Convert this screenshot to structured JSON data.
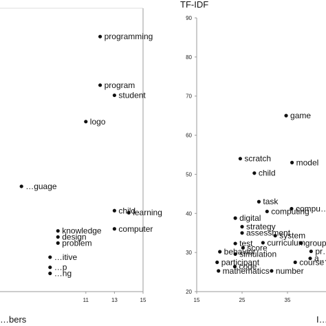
{
  "chart_data": [
    {
      "type": "scatter",
      "title": "",
      "xlabel": "…bers",
      "ylabel": "",
      "xlim": [
        5,
        15
      ],
      "ylim": [
        20,
        90
      ],
      "x_ticks": [
        "11",
        "13",
        "15"
      ],
      "grid": false,
      "points": [
        {
          "label": "programming",
          "x": 12,
          "y": 83
        },
        {
          "label": "program",
          "x": 12,
          "y": 71
        },
        {
          "label": "student",
          "x": 13,
          "y": 68.5
        },
        {
          "label": "logo",
          "x": 11,
          "y": 62
        },
        {
          "label": "…guage",
          "x": 6.5,
          "y": 46
        },
        {
          "label": "child",
          "x": 13,
          "y": 40
        },
        {
          "label": "learning",
          "x": 14,
          "y": 39.5
        },
        {
          "label": "computer",
          "x": 13,
          "y": 35.5
        },
        {
          "label": "knowledge",
          "x": 9.05,
          "y": 35
        },
        {
          "label": "design",
          "x": 9.05,
          "y": 33.5
        },
        {
          "label": "problem",
          "x": 9.05,
          "y": 32
        },
        {
          "label": "…itive",
          "x": 8.5,
          "y": 28.5
        },
        {
          "label": "…p",
          "x": 8.5,
          "y": 26
        },
        {
          "label": "…ng",
          "x": 8.5,
          "y": 24.5
        }
      ]
    },
    {
      "type": "scatter",
      "title": "TF-IDF",
      "xlabel": "I…",
      "ylabel": "",
      "xlim": [
        15,
        45
      ],
      "ylim": [
        20,
        90
      ],
      "x_ticks": [
        "15",
        "25",
        "35"
      ],
      "y_ticks": [
        "20",
        "30",
        "40",
        "50",
        "60",
        "70",
        "80",
        "90"
      ],
      "grid": false,
      "points": [
        {
          "label": "game",
          "x": 34.7,
          "y": 65
        },
        {
          "label": "",
          "x": 44.0,
          "y": 62
        },
        {
          "label": "scratch",
          "x": 24.6,
          "y": 54
        },
        {
          "label": "model",
          "x": 36.0,
          "y": 53
        },
        {
          "label": "child",
          "x": 27.7,
          "y": 50.3
        },
        {
          "label": "task",
          "x": 28.7,
          "y": 43
        },
        {
          "label": "compu…",
          "x": 35.9,
          "y": 41.2
        },
        {
          "label": "computing",
          "x": 30.5,
          "y": 40.5
        },
        {
          "label": "digital",
          "x": 23.5,
          "y": 38.8
        },
        {
          "label": "strategy",
          "x": 25.0,
          "y": 36.6
        },
        {
          "label": "assessment",
          "x": 25.0,
          "y": 35.0
        },
        {
          "label": "system",
          "x": 32.3,
          "y": 34.3
        },
        {
          "label": "test",
          "x": 23.5,
          "y": 32.3
        },
        {
          "label": "score",
          "x": 25.2,
          "y": 31.2
        },
        {
          "label": "curriculum",
          "x": 29.6,
          "y": 32.5
        },
        {
          "label": "group",
          "x": 38.0,
          "y": 32.4
        },
        {
          "label": "pr…",
          "x": 40.2,
          "y": 30.3
        },
        {
          "label": "behavior",
          "x": 20.1,
          "y": 30.2
        },
        {
          "label": "simulation",
          "x": 23.5,
          "y": 29.6
        },
        {
          "label": "code",
          "x": 23.4,
          "y": 26.4
        },
        {
          "label": "mathematics",
          "x": 19.8,
          "y": 25.3
        },
        {
          "label": "number",
          "x": 31.5,
          "y": 25.3
        },
        {
          "label": "course",
          "x": 36.7,
          "y": 27.5
        },
        {
          "label": "participant",
          "x": 19.5,
          "y": 27.5
        },
        {
          "label": "a…",
          "x": 40.0,
          "y": 28.5
        }
      ]
    }
  ]
}
